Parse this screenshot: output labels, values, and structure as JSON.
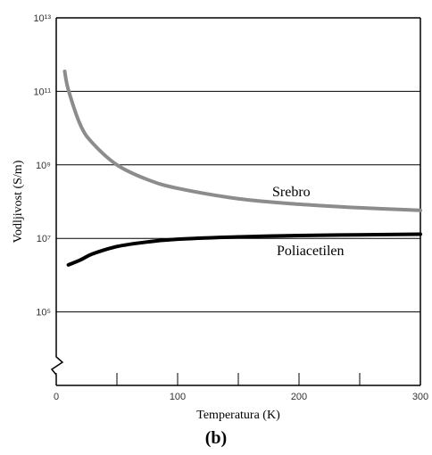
{
  "chart_data": {
    "type": "line",
    "caption": "(b)",
    "xlabel": "Temperatura (K)",
    "ylabel": "Vodljivost (S/m)",
    "xlim": [
      0,
      300
    ],
    "xticks": [
      0,
      100,
      200,
      300
    ],
    "xminorticks": [
      50,
      150,
      250
    ],
    "ylim": [
      1000,
      10000000000000
    ],
    "ylog": true,
    "yticks": [
      {
        "value": 100000,
        "label": "10⁵"
      },
      {
        "value": 10000000,
        "label": "10⁷"
      },
      {
        "value": 1000000000,
        "label": "10⁹"
      },
      {
        "value": 100000000000,
        "label": "10¹¹"
      },
      {
        "value": 10000000000000,
        "label": "10¹³"
      }
    ],
    "grid": true,
    "series": [
      {
        "name": "Srebro",
        "color": "#8c8c8c",
        "x": [
          7,
          10,
          20,
          30,
          50,
          75,
          100,
          150,
          200,
          250,
          300
        ],
        "values": [
          350000000000,
          110000000000,
          12000000000,
          3900000000,
          1000000000,
          400000000,
          230000000,
          120000000,
          85000000,
          68000000,
          58000000
        ]
      },
      {
        "name": "Poliacetilen",
        "color": "#000000",
        "x": [
          10,
          20,
          30,
          50,
          75,
          100,
          150,
          200,
          300
        ],
        "values": [
          1900000,
          2600000,
          3800000,
          6000000,
          8000000,
          9500000,
          11000000,
          12000000,
          13000000
        ]
      }
    ]
  }
}
